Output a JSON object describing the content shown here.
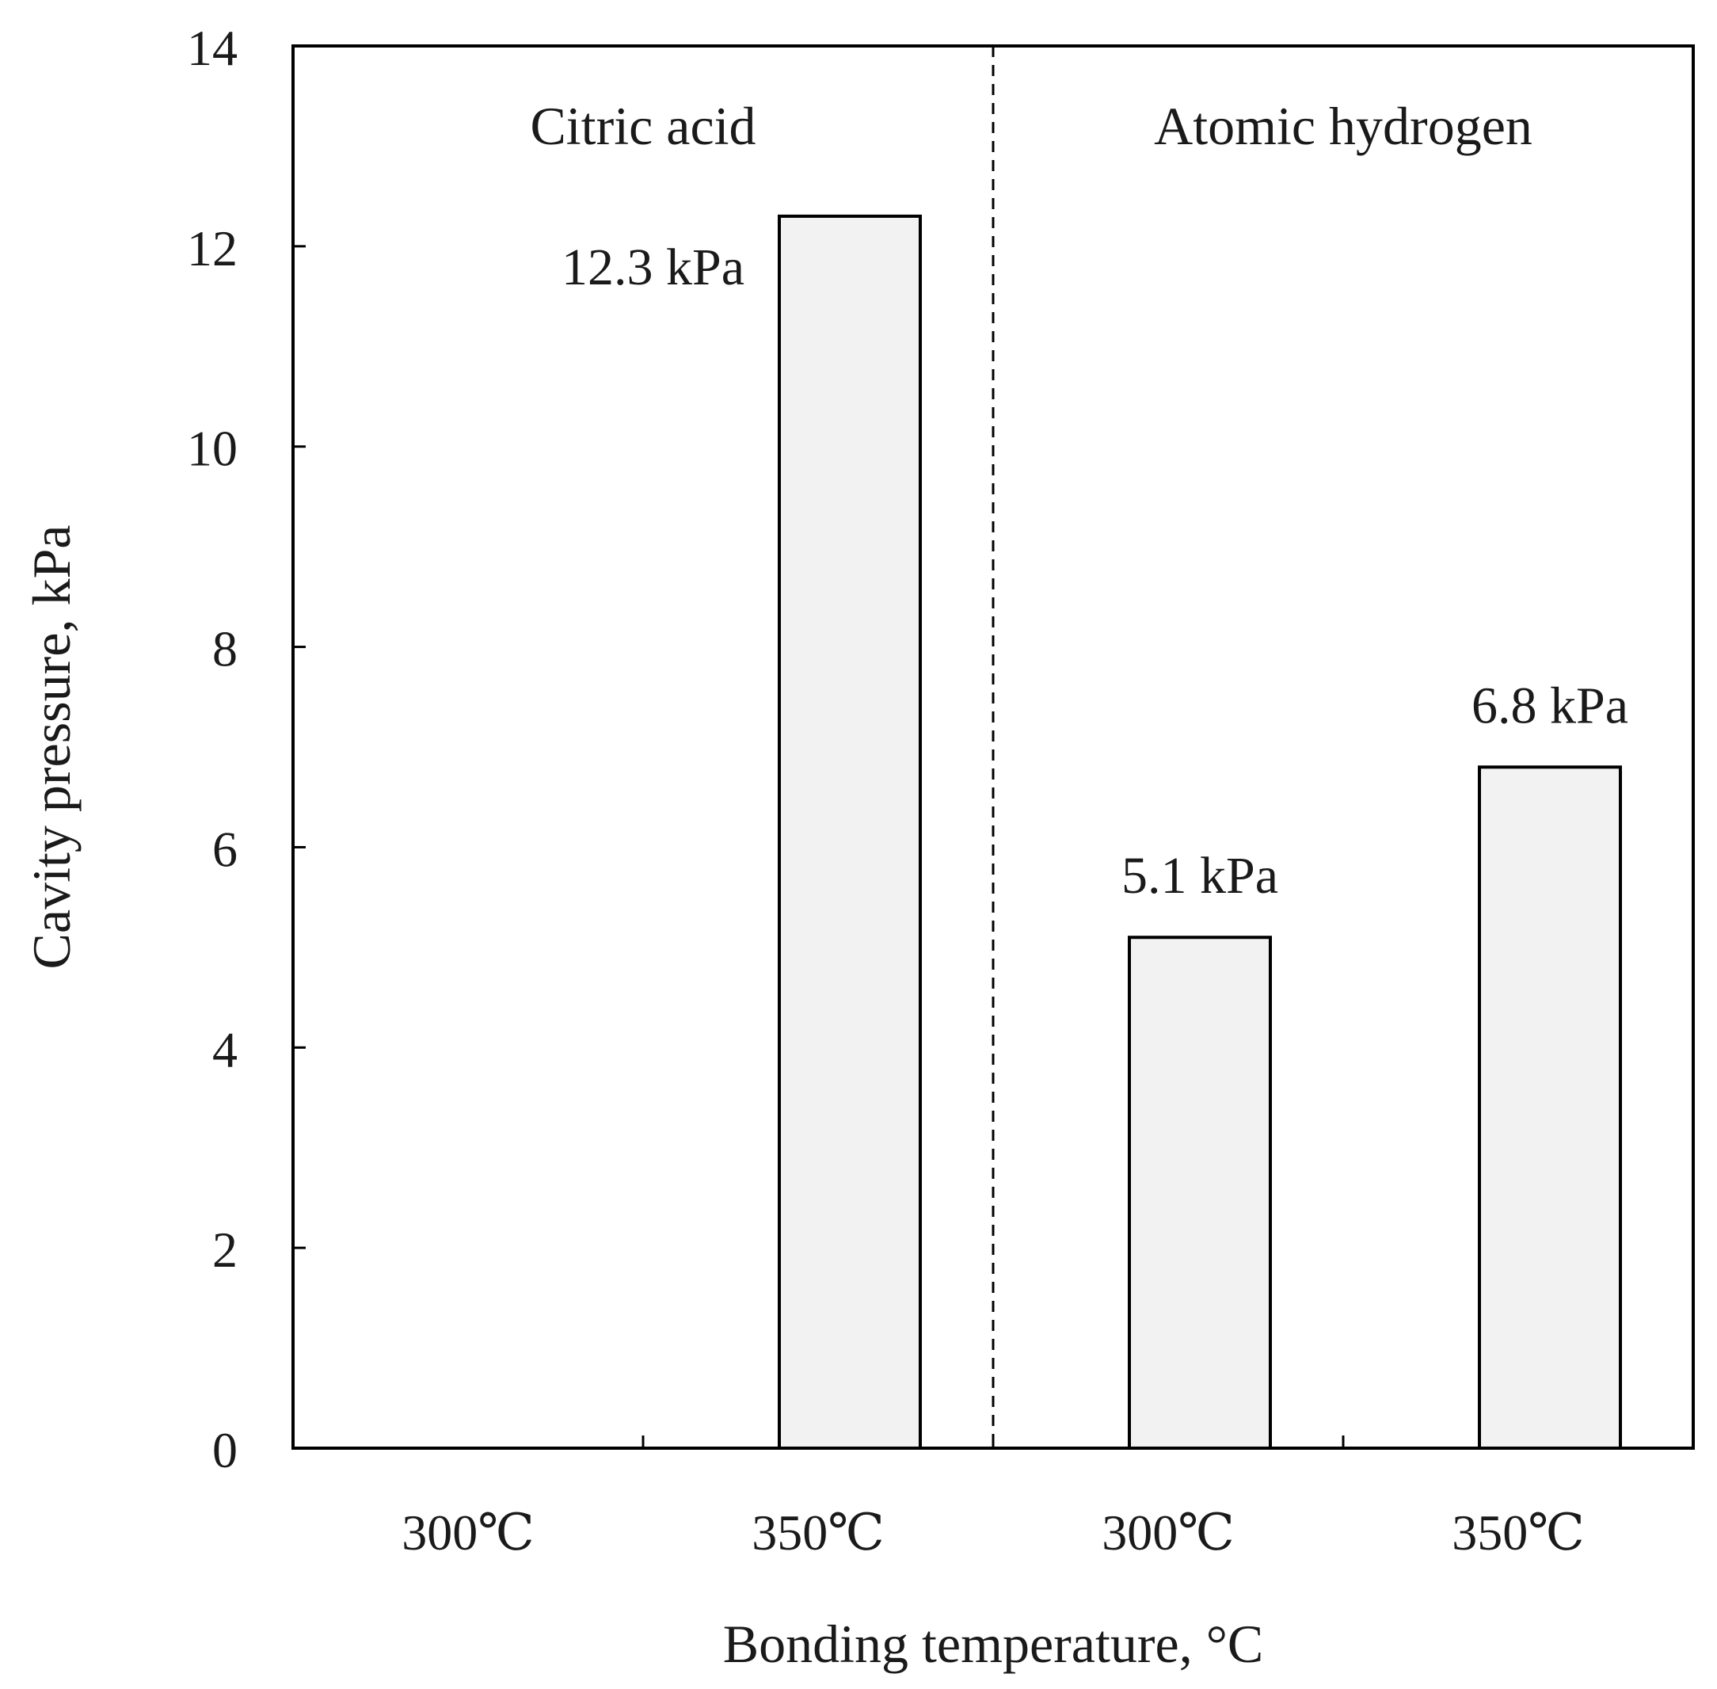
{
  "chart_data": {
    "type": "bar",
    "xlabel": "Bonding temperature, °C",
    "ylabel": "Cavity pressure, kPa",
    "ylim": [
      0,
      14
    ],
    "yticks": [
      "0",
      "2",
      "4",
      "6",
      "8",
      "10",
      "12",
      "14"
    ],
    "categories": [
      "300℃",
      "350℃",
      "300℃",
      "350℃"
    ],
    "values": [
      null,
      12.3,
      5.1,
      6.8
    ],
    "data_labels": [
      "",
      "12.3 kPa",
      "5.1 kPa",
      "6.8 kPa"
    ],
    "groups": [
      {
        "label": "Citric acid"
      },
      {
        "label": "Atomic hydrogen"
      }
    ],
    "bar_color": "#f2f2f2",
    "grid": false
  }
}
